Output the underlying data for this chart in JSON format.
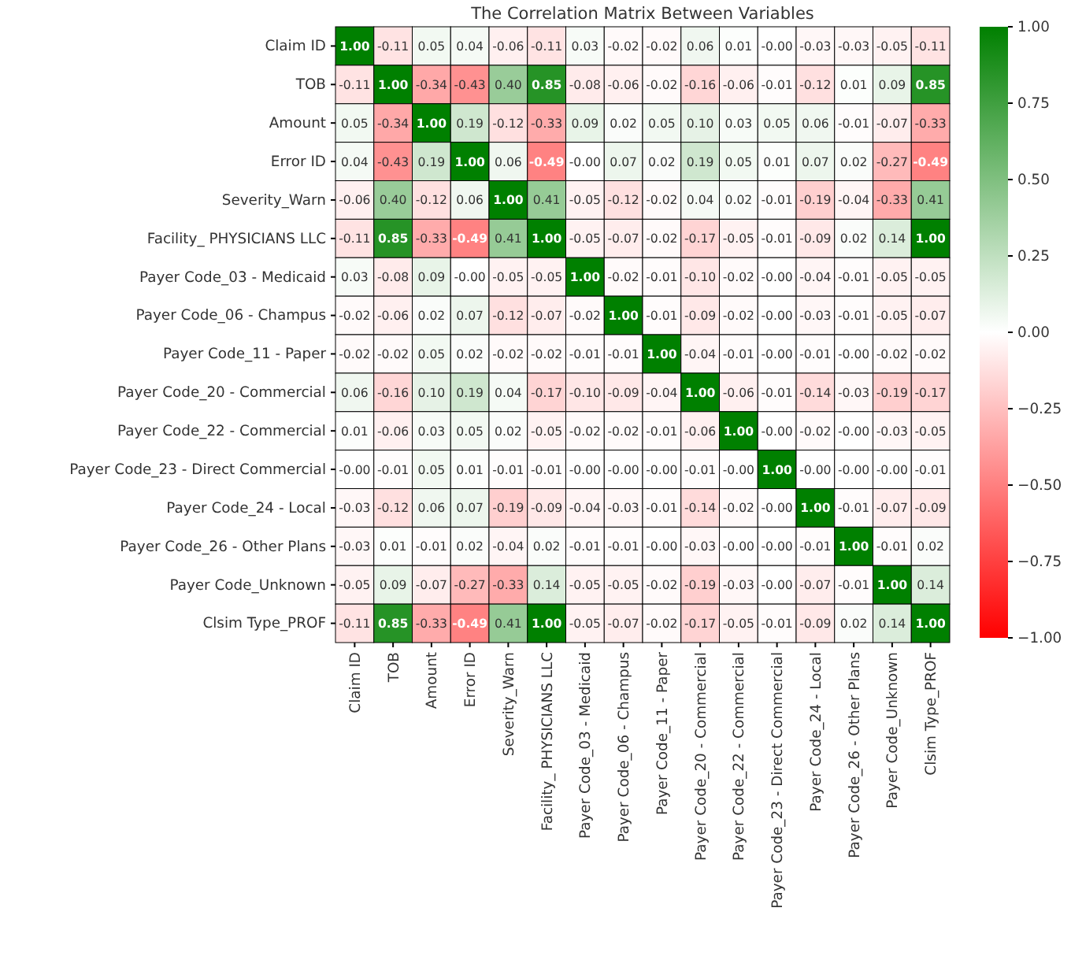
{
  "chart_data": {
    "type": "heatmap",
    "title": "The Correlation Matrix Between Variables",
    "categories": [
      "Claim ID",
      "TOB",
      "Amount",
      "Error ID",
      "Severity_Warn",
      "Facility_ PHYSICIANS LLC",
      "Payer Code_03 - Medicaid",
      "Payer Code_06 - Champus",
      "Payer Code_11 - Paper",
      "Payer Code_20 - Commercial",
      "Payer Code_22 - Commercial",
      "Payer Code_23 - Direct Commercial",
      "Payer Code_24 - Local",
      "Payer Code_26 - Other Plans",
      "Payer Code_Unknown",
      "Clsim Type_PROF"
    ],
    "y_categories": [
      "Claim ID",
      "TOB",
      "Amount",
      "Error ID",
      "Severity_Warn",
      "Facility_ PHYSICIANS LLC",
      "Payer Code_03 - Medicaid",
      "Payer Code_06 - Champus",
      "Payer Code_11 - Paper",
      "Payer Code_20 - Commercial",
      "Payer Code_22 - Commercial",
      "Payer Code_23 - Direct Commercial",
      "Payer Code_24 - Local",
      "Payer Code_26 - Other Plans",
      "Payer Code_Unknown",
      "Clsim Type_PROF"
    ],
    "cells": [
      [
        1.0,
        -0.11,
        0.05,
        0.04,
        -0.06,
        -0.11,
        0.03,
        -0.02,
        -0.02,
        0.06,
        0.01,
        0,
        -0.03,
        -0.03,
        -0.05,
        -0.11
      ],
      [
        -0.11,
        1.0,
        -0.34,
        -0.43,
        0.4,
        0.85,
        -0.08,
        -0.06,
        -0.02,
        -0.16,
        -0.06,
        -0.01,
        -0.12,
        0.01,
        0.09,
        0.85
      ],
      [
        0.05,
        -0.34,
        1.0,
        0.19,
        -0.12,
        -0.33,
        0.09,
        0.02,
        0.05,
        0.1,
        0.03,
        0.05,
        0.06,
        -0.01,
        -0.07,
        -0.33
      ],
      [
        0.04,
        -0.43,
        0.19,
        1.0,
        0.06,
        -0.49,
        0,
        0.07,
        0.02,
        0.19,
        0.05,
        0.01,
        0.07,
        0.02,
        -0.27,
        -0.49
      ],
      [
        -0.06,
        0.4,
        -0.12,
        0.06,
        1.0,
        0.41,
        -0.05,
        -0.12,
        -0.02,
        0.04,
        0.02,
        -0.01,
        -0.19,
        -0.04,
        -0.33,
        0.41
      ],
      [
        -0.11,
        0.85,
        -0.33,
        -0.49,
        0.41,
        1.0,
        -0.05,
        -0.07,
        -0.02,
        -0.17,
        -0.05,
        -0.01,
        -0.09,
        0.02,
        0.14,
        1.0
      ],
      [
        0.03,
        -0.08,
        0.09,
        0,
        -0.05,
        -0.05,
        1.0,
        -0.02,
        -0.01,
        -0.1,
        -0.02,
        0,
        -0.04,
        -0.01,
        -0.05,
        -0.05
      ],
      [
        -0.02,
        -0.06,
        0.02,
        0.07,
        -0.12,
        -0.07,
        -0.02,
        1.0,
        -0.01,
        -0.09,
        -0.02,
        0,
        -0.03,
        -0.01,
        -0.05,
        -0.07
      ],
      [
        -0.02,
        -0.02,
        0.05,
        0.02,
        -0.02,
        -0.02,
        -0.01,
        -0.01,
        1.0,
        -0.04,
        -0.01,
        0,
        -0.01,
        0,
        -0.02,
        -0.02
      ],
      [
        0.06,
        -0.16,
        0.1,
        0.19,
        0.04,
        -0.17,
        -0.1,
        -0.09,
        -0.04,
        1.0,
        -0.06,
        -0.01,
        -0.14,
        -0.03,
        -0.19,
        -0.17
      ],
      [
        0.01,
        -0.06,
        0.03,
        0.05,
        0.02,
        -0.05,
        -0.02,
        -0.02,
        -0.01,
        -0.06,
        1.0,
        0,
        -0.02,
        0,
        -0.03,
        -0.05
      ],
      [
        0,
        -0.01,
        0.05,
        0.01,
        -0.01,
        -0.01,
        0,
        0,
        0,
        -0.01,
        0,
        1.0,
        0,
        0,
        0,
        -0.01
      ],
      [
        -0.03,
        -0.12,
        0.06,
        0.07,
        -0.19,
        -0.09,
        -0.04,
        -0.03,
        -0.01,
        -0.14,
        -0.02,
        0,
        1.0,
        -0.01,
        -0.07,
        -0.09
      ],
      [
        -0.03,
        0.01,
        -0.01,
        0.02,
        -0.04,
        0.02,
        -0.01,
        -0.01,
        0,
        -0.03,
        0,
        0,
        -0.01,
        1.0,
        -0.01,
        0.02
      ],
      [
        -0.05,
        0.09,
        -0.07,
        -0.27,
        -0.33,
        0.14,
        -0.05,
        -0.05,
        -0.02,
        -0.19,
        -0.03,
        0,
        -0.07,
        -0.01,
        1.0,
        0.14
      ],
      [
        -0.11,
        0.85,
        -0.33,
        -0.49,
        0.41,
        1.0,
        -0.05,
        -0.07,
        -0.02,
        -0.17,
        -0.05,
        -0.01,
        -0.09,
        0.02,
        0.14,
        1.0
      ]
    ],
    "cell_labels": [
      [
        "1.00",
        "-0.11",
        "0.05",
        "0.04",
        "-0.06",
        "-0.11",
        "0.03",
        "-0.02",
        "-0.02",
        "0.06",
        "0.01",
        "-0.00",
        "-0.03",
        "-0.03",
        "-0.05",
        "-0.11"
      ],
      [
        "-0.11",
        "1.00",
        "-0.34",
        "-0.43",
        "0.40",
        "0.85",
        "-0.08",
        "-0.06",
        "-0.02",
        "-0.16",
        "-0.06",
        "-0.01",
        "-0.12",
        "0.01",
        "0.09",
        "0.85"
      ],
      [
        "0.05",
        "-0.34",
        "1.00",
        "0.19",
        "-0.12",
        "-0.33",
        "0.09",
        "0.02",
        "0.05",
        "0.10",
        "0.03",
        "0.05",
        "0.06",
        "-0.01",
        "-0.07",
        "-0.33"
      ],
      [
        "0.04",
        "-0.43",
        "0.19",
        "1.00",
        "0.06",
        "-0.49",
        "-0.00",
        "0.07",
        "0.02",
        "0.19",
        "0.05",
        "0.01",
        "0.07",
        "0.02",
        "-0.27",
        "-0.49"
      ],
      [
        "-0.06",
        "0.40",
        "-0.12",
        "0.06",
        "1.00",
        "0.41",
        "-0.05",
        "-0.12",
        "-0.02",
        "0.04",
        "0.02",
        "-0.01",
        "-0.19",
        "-0.04",
        "-0.33",
        "0.41"
      ],
      [
        "-0.11",
        "0.85",
        "-0.33",
        "-0.49",
        "0.41",
        "1.00",
        "-0.05",
        "-0.07",
        "-0.02",
        "-0.17",
        "-0.05",
        "-0.01",
        "-0.09",
        "0.02",
        "0.14",
        "1.00"
      ],
      [
        "0.03",
        "-0.08",
        "0.09",
        "-0.00",
        "-0.05",
        "-0.05",
        "1.00",
        "-0.02",
        "-0.01",
        "-0.10",
        "-0.02",
        "-0.00",
        "-0.04",
        "-0.01",
        "-0.05",
        "-0.05"
      ],
      [
        "-0.02",
        "-0.06",
        "0.02",
        "0.07",
        "-0.12",
        "-0.07",
        "-0.02",
        "1.00",
        "-0.01",
        "-0.09",
        "-0.02",
        "-0.00",
        "-0.03",
        "-0.01",
        "-0.05",
        "-0.07"
      ],
      [
        "-0.02",
        "-0.02",
        "0.05",
        "0.02",
        "-0.02",
        "-0.02",
        "-0.01",
        "-0.01",
        "1.00",
        "-0.04",
        "-0.01",
        "-0.00",
        "-0.01",
        "-0.00",
        "-0.02",
        "-0.02"
      ],
      [
        "0.06",
        "-0.16",
        "0.10",
        "0.19",
        "0.04",
        "-0.17",
        "-0.10",
        "-0.09",
        "-0.04",
        "1.00",
        "-0.06",
        "-0.01",
        "-0.14",
        "-0.03",
        "-0.19",
        "-0.17"
      ],
      [
        "0.01",
        "-0.06",
        "0.03",
        "0.05",
        "0.02",
        "-0.05",
        "-0.02",
        "-0.02",
        "-0.01",
        "-0.06",
        "1.00",
        "-0.00",
        "-0.02",
        "-0.00",
        "-0.03",
        "-0.05"
      ],
      [
        "-0.00",
        "-0.01",
        "0.05",
        "0.01",
        "-0.01",
        "-0.01",
        "-0.00",
        "-0.00",
        "-0.00",
        "-0.01",
        "-0.00",
        "1.00",
        "-0.00",
        "-0.00",
        "-0.00",
        "-0.01"
      ],
      [
        "-0.03",
        "-0.12",
        "0.06",
        "0.07",
        "-0.19",
        "-0.09",
        "-0.04",
        "-0.03",
        "-0.01",
        "-0.14",
        "-0.02",
        "-0.00",
        "1.00",
        "-0.01",
        "-0.07",
        "-0.09"
      ],
      [
        "-0.03",
        "0.01",
        "-0.01",
        "0.02",
        "-0.04",
        "0.02",
        "-0.01",
        "-0.01",
        "-0.00",
        "-0.03",
        "-0.00",
        "-0.00",
        "-0.01",
        "1.00",
        "-0.01",
        "0.02"
      ],
      [
        "-0.05",
        "0.09",
        "-0.07",
        "-0.27",
        "-0.33",
        "0.14",
        "-0.05",
        "-0.05",
        "-0.02",
        "-0.19",
        "-0.03",
        "-0.00",
        "-0.07",
        "-0.01",
        "1.00",
        "0.14"
      ],
      [
        "-0.11",
        "0.85",
        "-0.33",
        "-0.49",
        "0.41",
        "1.00",
        "-0.05",
        "-0.07",
        "-0.02",
        "-0.17",
        "-0.05",
        "-0.01",
        "-0.09",
        "0.02",
        "0.14",
        "1.00"
      ]
    ],
    "clim": [
      -1,
      1
    ],
    "cticks": [
      {
        "value": -1,
        "label": "−1.00"
      },
      {
        "value": -0.75,
        "label": "−0.75"
      },
      {
        "value": -0.5,
        "label": "−0.50"
      },
      {
        "value": -0.25,
        "label": "−0.25"
      },
      {
        "value": 0,
        "label": "0.00"
      },
      {
        "value": 0.25,
        "label": "0.25"
      },
      {
        "value": 0.5,
        "label": "0.50"
      },
      {
        "value": 0.75,
        "label": "0.75"
      },
      {
        "value": 1,
        "label": "1.00"
      }
    ],
    "data_labels": true
  }
}
